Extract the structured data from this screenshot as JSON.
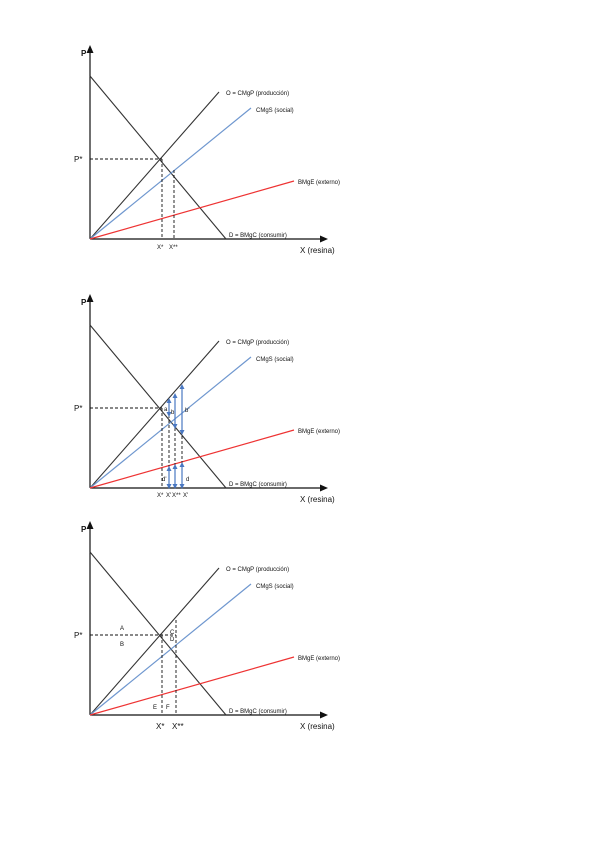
{
  "diagrams": [
    {
      "y_label": "P",
      "x_label": "X (resina)",
      "p_star": "P*",
      "supply": "O = CMgP (producción)",
      "social": "CMgS (social)",
      "external": "BMgE (externo)",
      "demand": "D = BMgC (consumir)",
      "x_star": "X*",
      "x_star2": "X**"
    },
    {
      "y_label": "P",
      "x_label": "X (resina)",
      "p_star": "P*",
      "supply": "O = CMgP (producción)",
      "social": "CMgS (social)",
      "external": "BMgE (externo)",
      "demand": "D = BMgC (consumir)",
      "x_star": "X*",
      "x_prime": "X'",
      "x_star2": "X**",
      "x_prime2": "X'",
      "seg_a": "a",
      "seg_b": "b",
      "seg_b2": "b'",
      "seg_d": "d",
      "seg_d2": "d'"
    },
    {
      "y_label": "P",
      "x_label": "X (resina)",
      "p_star": "P*",
      "supply": "O = CMgP (producción)",
      "social": "CMgS (social)",
      "external": "BMgE (externo)",
      "demand": "D = BMgC (consumir)",
      "x_star": "X*",
      "x_star2": "X**",
      "area_a": "A",
      "area_b": "B",
      "area_c": "C",
      "area_d": "D",
      "area_e": "E",
      "area_f": "F"
    }
  ]
}
